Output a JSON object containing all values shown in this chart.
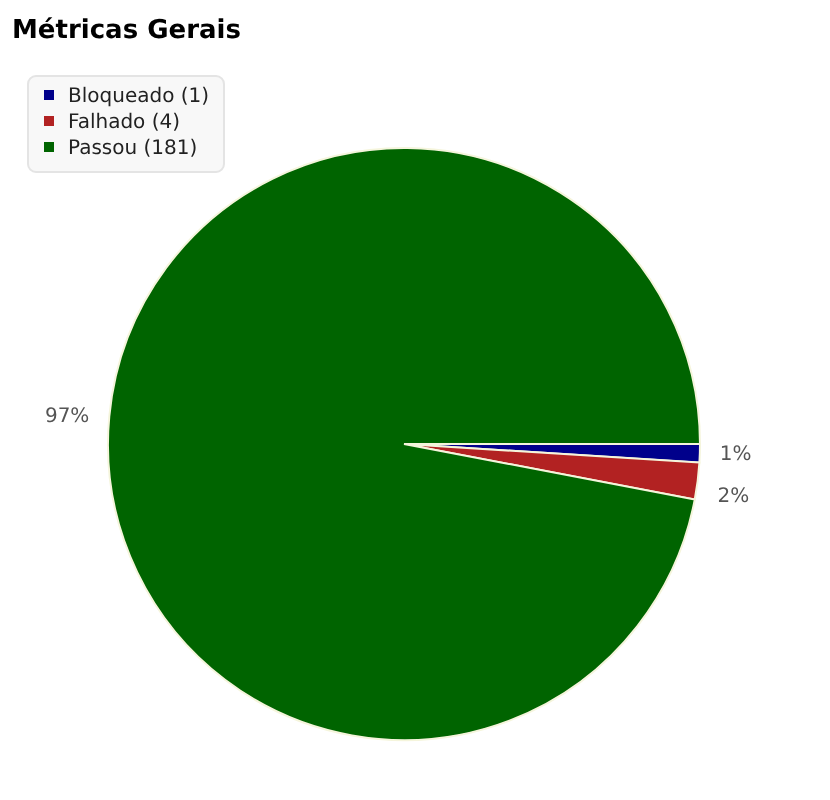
{
  "chart_data": {
    "type": "pie",
    "title": "Métricas Gerais",
    "categories": [
      "Bloqueado (1)",
      "Falhado (4)",
      "Passou (181)"
    ],
    "values": [
      1,
      2,
      97
    ],
    "colors": [
      "#00008b",
      "#b22222",
      "#006400"
    ],
    "value_labels": [
      "1%",
      "2%",
      "97%"
    ],
    "legend": "top left"
  }
}
